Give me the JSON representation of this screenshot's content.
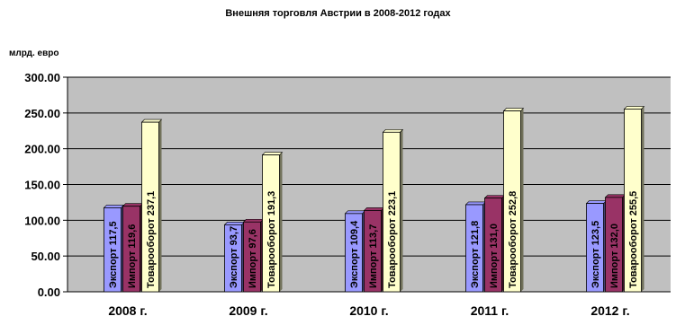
{
  "chart_data": {
    "type": "bar",
    "title": "Внешняя торговля Австрии в 2008-2012 годах",
    "ylabel": "млрд. евро",
    "xlabel": "",
    "ylim": [
      0,
      300
    ],
    "yticks": [
      "0.00",
      "50.00",
      "100.00",
      "150.00",
      "200.00",
      "250.00",
      "300.00"
    ],
    "grid": true,
    "legend": "none",
    "categories": [
      "2008 г.",
      "2009 г.",
      "2010 г.",
      "2011 г.",
      "2012 г."
    ],
    "series": [
      {
        "name": "Экспорт",
        "color": "#9999ff",
        "values": [
          117.5,
          93.7,
          109.4,
          121.8,
          123.5
        ],
        "labels": [
          "Экспорт  117,5",
          "Экспорт  93,7",
          "Экспорт  109,4",
          "Экспорт  121,8",
          "Экспорт  123,5"
        ]
      },
      {
        "name": "Импорт",
        "color": "#993366",
        "values": [
          119.6,
          97.6,
          113.7,
          131.0,
          132.0
        ],
        "labels": [
          "Импорт  119,6",
          "Импорт  97,6",
          "Импорт  113,7",
          "Импорт  131,0",
          "Импорт  132,0"
        ]
      },
      {
        "name": "Товарооборот",
        "color": "#ffffcc",
        "values": [
          237.1,
          191.3,
          223.1,
          252.8,
          255.5
        ],
        "labels": [
          "Товарооборот 237,1",
          "Товарооборот 191,3",
          "Товарооборот 223,1",
          "Товарооборот 252,8",
          "Товарооборот 255,5"
        ]
      }
    ],
    "plot_background": "#c0c0c0"
  }
}
